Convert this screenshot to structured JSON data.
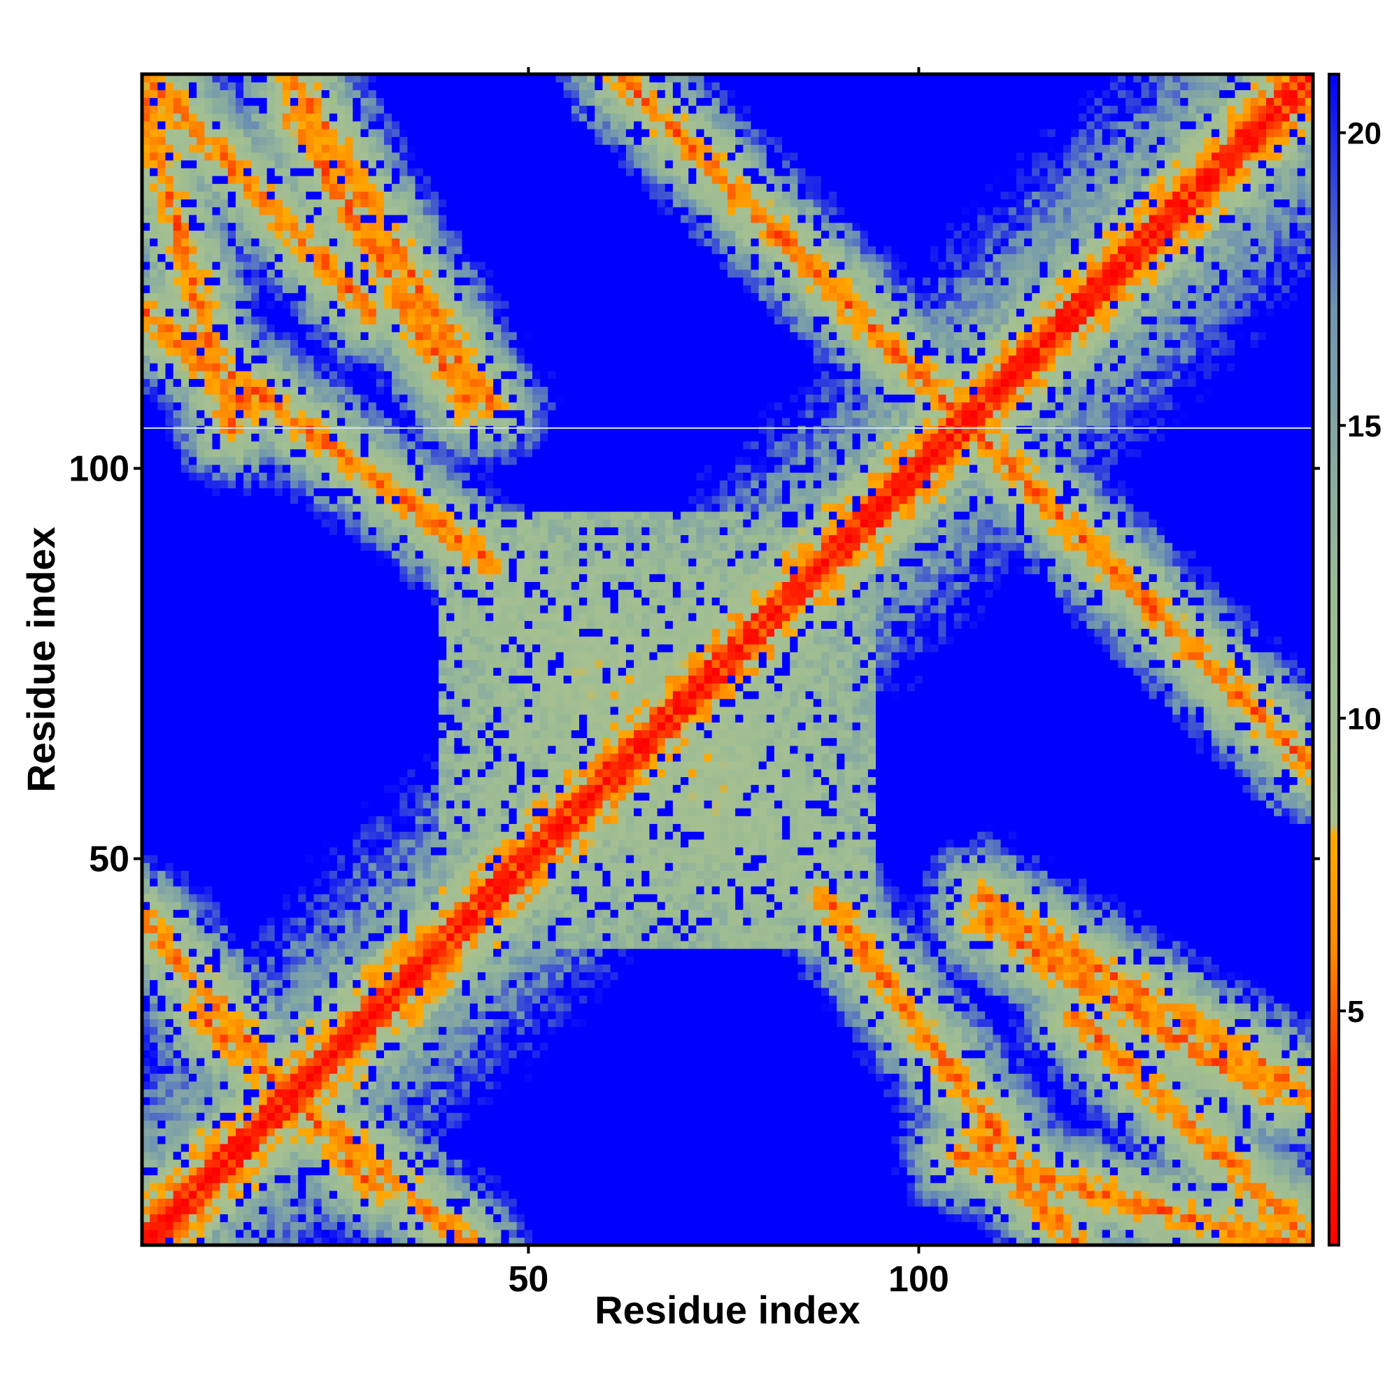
{
  "chart_data": {
    "type": "heatmap",
    "description_value": "pairwise residue distance matrix (symmetric), values capped at 21",
    "n_residues": 150,
    "x": {
      "label": "Residue index",
      "range": [
        1,
        150
      ],
      "ticks": [
        50,
        100
      ]
    },
    "y": {
      "label": "Residue index",
      "range": [
        1,
        150
      ],
      "ticks": [
        50,
        100
      ]
    },
    "colorbar": {
      "range": [
        1,
        21
      ],
      "ticks": [
        5,
        10,
        15,
        20
      ],
      "tick_labels": [
        "5",
        "10",
        "15",
        "20"
      ],
      "stops": [
        {
          "value": 1,
          "color": "#ff0000"
        },
        {
          "value": 4,
          "color": "#ff3300"
        },
        {
          "value": 6,
          "color": "#ff8800"
        },
        {
          "value": 8,
          "color": "#ffaa00"
        },
        {
          "value": 8.2,
          "color": "#a8c090"
        },
        {
          "value": 12,
          "color": "#9cbc94"
        },
        {
          "value": 17,
          "color": "#6f95b0"
        },
        {
          "value": 21,
          "color": "#0000ff"
        }
      ]
    },
    "contact_bands": [
      {
        "kind": "diagonal",
        "from": [
          1,
          1
        ],
        "to": [
          150,
          150
        ]
      },
      {
        "kind": "anti",
        "from": [
          1,
          150
        ],
        "to": [
          30,
          120
        ]
      },
      {
        "kind": "anti",
        "from": [
          1,
          120
        ],
        "to": [
          14,
          108
        ]
      },
      {
        "kind": "anti",
        "from": [
          20,
          145
        ],
        "to": [
          42,
          108
        ]
      },
      {
        "kind": "anti",
        "from": [
          88,
          124
        ],
        "to": [
          150,
          62
        ]
      },
      {
        "kind": "anti",
        "from": [
          105,
          12
        ],
        "to": [
          150,
          0
        ]
      },
      {
        "kind": "anti",
        "from": [
          108,
          45
        ],
        "to": [
          150,
          20
        ]
      },
      {
        "kind": "anti",
        "from": [
          1,
          42
        ],
        "to": [
          30,
          8
        ]
      },
      {
        "kind": "anti",
        "from": [
          88,
          45
        ],
        "to": [
          112,
          12
        ]
      }
    ],
    "grid": false,
    "legend": "colorbar-right"
  }
}
